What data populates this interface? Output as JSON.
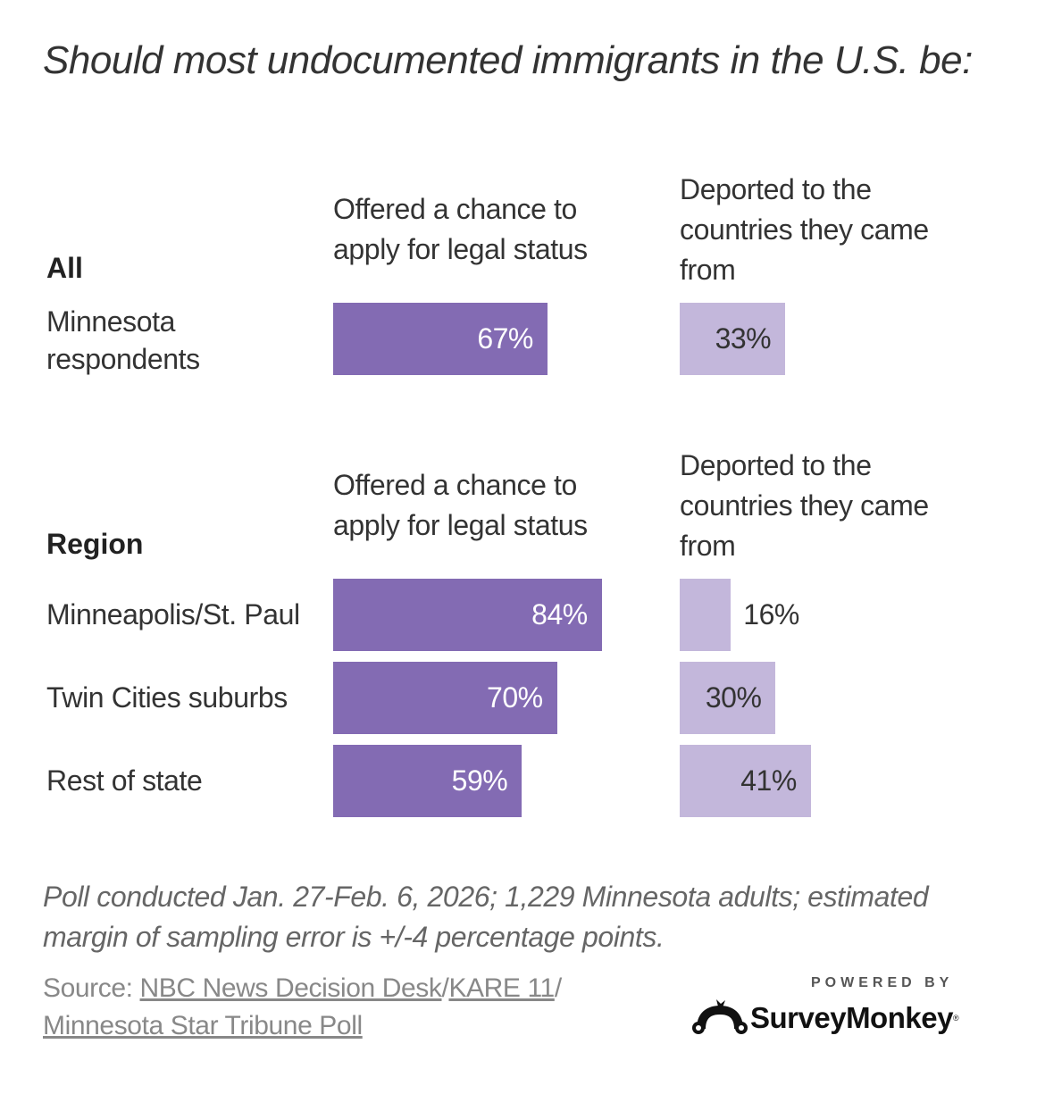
{
  "chart_data": {
    "type": "bar",
    "title": "Should most undocumented immigrants in the U.S. be:",
    "series_labels": [
      "Offered a chance to apply for legal status",
      "Deported to the countries they came from"
    ],
    "colors": {
      "legal": "#836bb3",
      "deport": "#c3b7db"
    },
    "groups": [
      {
        "label": "All",
        "header_legal": [
          "Offered a chance to",
          "apply for legal status"
        ],
        "header_deport": [
          "Deported to the",
          "countries they came",
          "from"
        ],
        "rows": [
          {
            "label": [
              "Minnesota",
              "respondents"
            ],
            "legal": 67,
            "deport": 33
          }
        ]
      },
      {
        "label": "Region",
        "header_legal": [
          "Offered a chance to",
          "apply for legal status"
        ],
        "header_deport": [
          "Deported to the",
          "countries they came",
          "from"
        ],
        "rows": [
          {
            "label": [
              "Minneapolis/St. Paul"
            ],
            "legal": 84,
            "deport": 16
          },
          {
            "label": [
              "Twin Cities suburbs"
            ],
            "legal": 70,
            "deport": 30
          },
          {
            "label": [
              "Rest of state"
            ],
            "legal": 59,
            "deport": 41
          }
        ]
      }
    ],
    "unit": "%",
    "xlim": [
      0,
      100
    ]
  },
  "footer": {
    "note": "Poll conducted Jan. 27-Feb. 6, 2026; 1,229 Minnesota adults; estimated margin of sampling error is +/-4 percentage points.",
    "source_prefix": "Source: ",
    "source_link1": "NBC News Decision Desk",
    "sep1": "/",
    "source_link2": "KARE 11",
    "sep2": "/",
    "source_link3": "Minnesota Star Tribune Poll",
    "powered_by": "POWERED BY",
    "brand": "SurveyMonkey",
    "reg": "®"
  }
}
